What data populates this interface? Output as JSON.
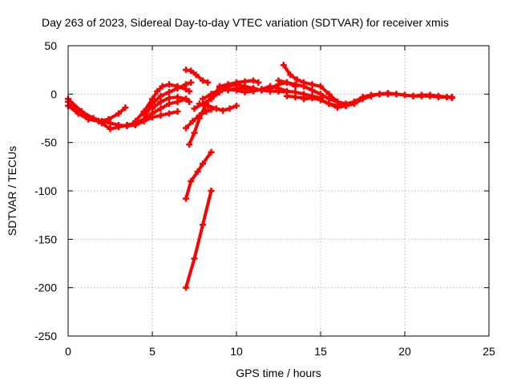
{
  "chart_data": {
    "type": "scatter",
    "title": "Day 263 of 2023, Sidereal Day-to-day VTEC variation (SDTVAR) for receiver xmis",
    "xlabel": "GPS time / hours",
    "ylabel": "SDTVAR / TECUs",
    "xlim": [
      0,
      25
    ],
    "ylim": [
      -250,
      50
    ],
    "xticks": [
      "0",
      "5",
      "10",
      "15",
      "20",
      "25"
    ],
    "yticks": [
      "50",
      "0",
      "-50",
      "-100",
      "-150",
      "-200",
      "-250"
    ],
    "grid": true,
    "series_color": "#ff0000",
    "series": [
      {
        "name": "track-1",
        "x": [
          0.0,
          0.5,
          1.0,
          1.5,
          2.0,
          2.5,
          3.0,
          3.5,
          4.0,
          4.5,
          5.0,
          5.5,
          6.0,
          6.5
        ],
        "y": [
          -8,
          -15,
          -22,
          -25,
          -28,
          -30,
          -32,
          -33,
          -32,
          -28,
          -24,
          -22,
          -20,
          -18
        ]
      },
      {
        "name": "track-2",
        "x": [
          0.0,
          0.6,
          1.2,
          1.8,
          2.4,
          3.0,
          3.4
        ],
        "y": [
          -12,
          -20,
          -26,
          -28,
          -26,
          -20,
          -14
        ]
      },
      {
        "name": "track-3",
        "x": [
          0.0,
          0.8,
          1.5,
          2.0,
          2.5,
          3.0,
          3.5,
          4.0,
          4.5,
          5.0,
          5.5,
          6.0,
          6.5,
          7.0
        ],
        "y": [
          -5,
          -18,
          -25,
          -30,
          -36,
          -34,
          -32,
          -30,
          -26,
          -20,
          -15,
          -10,
          -8,
          -5
        ]
      },
      {
        "name": "track-4",
        "x": [
          4.0,
          4.5,
          5.0,
          5.3,
          5.6,
          6.0,
          6.5,
          7.0,
          7.2
        ],
        "y": [
          -28,
          -18,
          -5,
          3,
          8,
          10,
          8,
          5,
          3
        ]
      },
      {
        "name": "track-5",
        "x": [
          4.6,
          5.0,
          5.5,
          6.0,
          6.5,
          7.0,
          7.3
        ],
        "y": [
          -22,
          -10,
          -2,
          2,
          6,
          10,
          12
        ]
      },
      {
        "name": "track-6",
        "x": [
          5.0,
          5.5,
          6.0,
          6.5,
          7.0,
          7.2
        ],
        "y": [
          -15,
          -8,
          -4,
          -3,
          -5,
          -8
        ]
      },
      {
        "name": "track-7",
        "x": [
          7.0,
          7.3,
          7.6,
          8.0,
          8.3
        ],
        "y": [
          25,
          24,
          20,
          14,
          12
        ]
      },
      {
        "name": "track-8",
        "x": [
          7.0,
          7.4,
          7.8,
          8.2,
          8.5
        ],
        "y": [
          -35,
          -28,
          -22,
          -18,
          -16
        ]
      },
      {
        "name": "track-9",
        "x": [
          7.2,
          7.5,
          7.8,
          8.2,
          8.6,
          9.0,
          9.4
        ],
        "y": [
          -52,
          -40,
          -25,
          -10,
          0,
          6,
          8
        ]
      },
      {
        "name": "track-10",
        "x": [
          7.0,
          7.3,
          7.7,
          8.0,
          8.5
        ],
        "y": [
          -108,
          -90,
          -80,
          -72,
          -60
        ]
      },
      {
        "name": "track-11",
        "x": [
          7.0,
          7.5,
          8.0,
          8.5
        ],
        "y": [
          -200,
          -170,
          -135,
          -100
        ]
      },
      {
        "name": "track-12",
        "x": [
          7.5,
          8.0,
          8.5,
          9.0,
          9.5,
          10.0,
          10.5,
          11.0,
          11.5,
          12.0,
          12.5,
          13.0,
          13.5
        ],
        "y": [
          -15,
          -10,
          -5,
          2,
          8,
          10,
          8,
          6,
          4,
          6,
          10,
          12,
          8
        ]
      },
      {
        "name": "track-13",
        "x": [
          7.8,
          8.3,
          8.8,
          9.2,
          9.6,
          10.0
        ],
        "y": [
          -10,
          -12,
          -15,
          -17,
          -15,
          -12
        ]
      },
      {
        "name": "track-14",
        "x": [
          8.0,
          8.5,
          9.0,
          9.5,
          10.0,
          10.5,
          11.0,
          11.5,
          12.0,
          12.5,
          13.0,
          13.5,
          14.0,
          14.5,
          15.0
        ],
        "y": [
          -5,
          0,
          3,
          5,
          4,
          2,
          3,
          5,
          8,
          6,
          3,
          2,
          0,
          -2,
          -4
        ]
      },
      {
        "name": "track-15",
        "x": [
          9.0,
          9.5,
          10.0,
          10.5,
          11.0,
          11.3
        ],
        "y": [
          8,
          10,
          12,
          13,
          14,
          12
        ]
      },
      {
        "name": "track-16",
        "x": [
          9.5,
          10.0,
          10.5,
          11.0,
          11.5,
          12.0,
          12.5,
          13.0
        ],
        "y": [
          4,
          6,
          6,
          5,
          4,
          3,
          3,
          2
        ]
      },
      {
        "name": "track-17",
        "x": [
          12.5,
          13.0,
          13.5,
          14.0,
          14.5,
          15.0,
          15.5,
          16.0,
          16.5,
          17.0
        ],
        "y": [
          14,
          12,
          10,
          8,
          4,
          0,
          -5,
          -8,
          -10,
          -8
        ]
      },
      {
        "name": "track-18",
        "x": [
          12.8,
          13.2,
          13.6,
          14.0,
          14.5,
          15.0,
          15.5,
          16.0,
          16.5,
          17.0,
          17.5,
          18.0,
          18.5,
          19.0,
          19.5,
          20.0,
          20.5,
          21.0,
          21.5,
          22.0,
          22.5,
          22.8
        ],
        "y": [
          30,
          20,
          15,
          12,
          10,
          8,
          0,
          -8,
          -12,
          -10,
          -5,
          -2,
          0,
          0,
          0,
          -1,
          -2,
          -2,
          -2,
          -3,
          -3,
          -3
        ]
      },
      {
        "name": "track-19",
        "x": [
          13.0,
          13.5,
          14.0,
          14.5,
          15.0,
          15.5,
          16.0,
          16.5,
          17.0,
          17.5,
          18.0,
          18.5,
          19.0,
          19.5,
          20.0,
          20.5,
          21.0,
          21.5,
          22.0,
          22.5,
          22.8
        ],
        "y": [
          -2,
          -3,
          -4,
          -4,
          -6,
          -10,
          -14,
          -12,
          -8,
          -3,
          -1,
          0,
          1,
          0,
          -1,
          -2,
          -1,
          -1,
          -2,
          -3,
          -4
        ]
      },
      {
        "name": "track-20",
        "x": [
          14.0,
          14.5,
          15.0,
          15.5,
          16.0,
          16.5,
          17.0
        ],
        "y": [
          -5,
          -4,
          -6,
          -10,
          -12,
          -11,
          -9
        ]
      }
    ]
  }
}
